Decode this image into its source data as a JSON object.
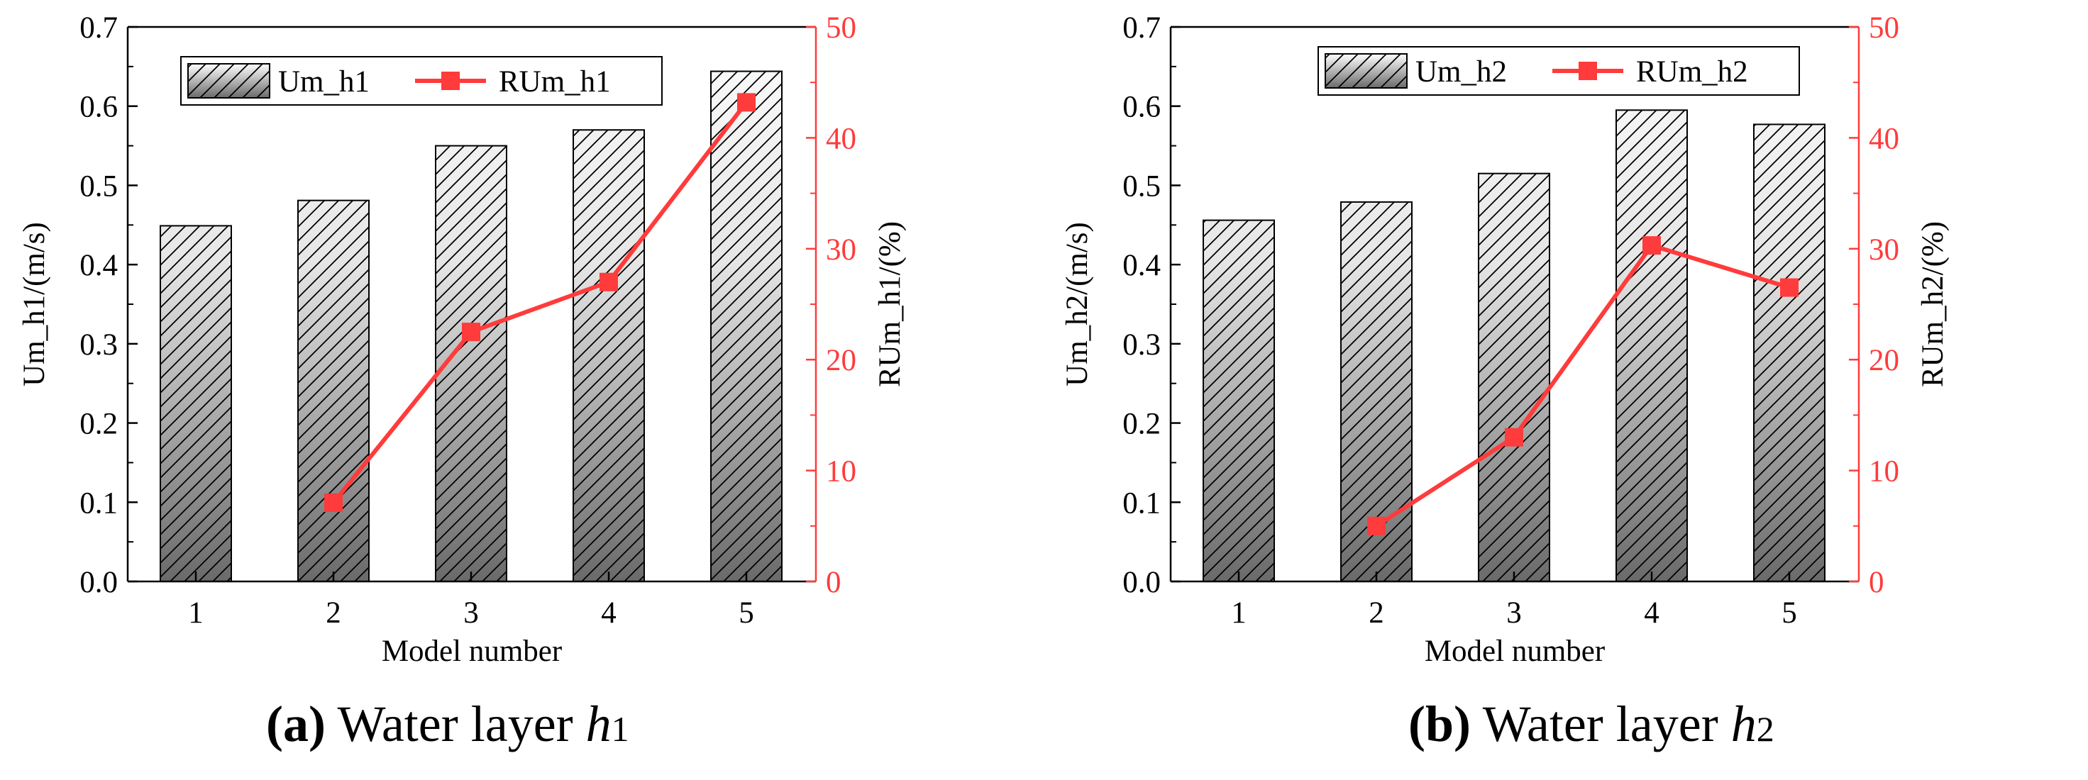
{
  "chart_data": [
    {
      "type": "bar",
      "panel": "a",
      "categories": [
        "1",
        "2",
        "3",
        "4",
        "5"
      ],
      "xlabel": "Model number",
      "ylabel": "Um_h1/(m/s)",
      "y2label": "RUm_h1/(%)",
      "ylim": [
        0,
        0.7
      ],
      "yticks": [
        "0.0",
        "0.1",
        "0.2",
        "0.3",
        "0.4",
        "0.5",
        "0.6",
        "0.7"
      ],
      "y2lim": [
        0,
        50
      ],
      "y2ticks": [
        "0",
        "10",
        "20",
        "30",
        "40",
        "50"
      ],
      "bar_series": {
        "name": "Um_h1",
        "values": [
          0.449,
          0.481,
          0.55,
          0.57,
          0.644
        ]
      },
      "line_series": {
        "name": "RUm_h1",
        "x_categories": [
          "2",
          "3",
          "4",
          "5"
        ],
        "values": [
          7.1,
          22.5,
          27.0,
          43.2
        ],
        "color": "#ff3b3b"
      },
      "legend_position": "top",
      "caption": {
        "label": "(a)",
        "text": " Water layer ",
        "variable": "h",
        "subscript": "1"
      }
    },
    {
      "type": "bar",
      "panel": "b",
      "categories": [
        "1",
        "2",
        "3",
        "4",
        "5"
      ],
      "xlabel": "Model number",
      "ylabel": "Um_h2/(m/s)",
      "y2label": "RUm_h2/(%)",
      "ylim": [
        0,
        0.7
      ],
      "yticks": [
        "0.0",
        "0.1",
        "0.2",
        "0.3",
        "0.4",
        "0.5",
        "0.6",
        "0.7"
      ],
      "y2lim": [
        0,
        50
      ],
      "y2ticks": [
        "0",
        "10",
        "20",
        "30",
        "40",
        "50"
      ],
      "bar_series": {
        "name": "Um_h2",
        "values": [
          0.456,
          0.479,
          0.515,
          0.595,
          0.577
        ]
      },
      "line_series": {
        "name": "RUm_h2",
        "x_categories": [
          "2",
          "3",
          "4",
          "5"
        ],
        "values": [
          5.0,
          13.0,
          30.3,
          26.5
        ],
        "color": "#ff3b3b"
      },
      "legend_position": "top-left",
      "caption": {
        "label": "(b)",
        "text": " Water layer ",
        "variable": "h",
        "subscript": "2"
      }
    }
  ]
}
